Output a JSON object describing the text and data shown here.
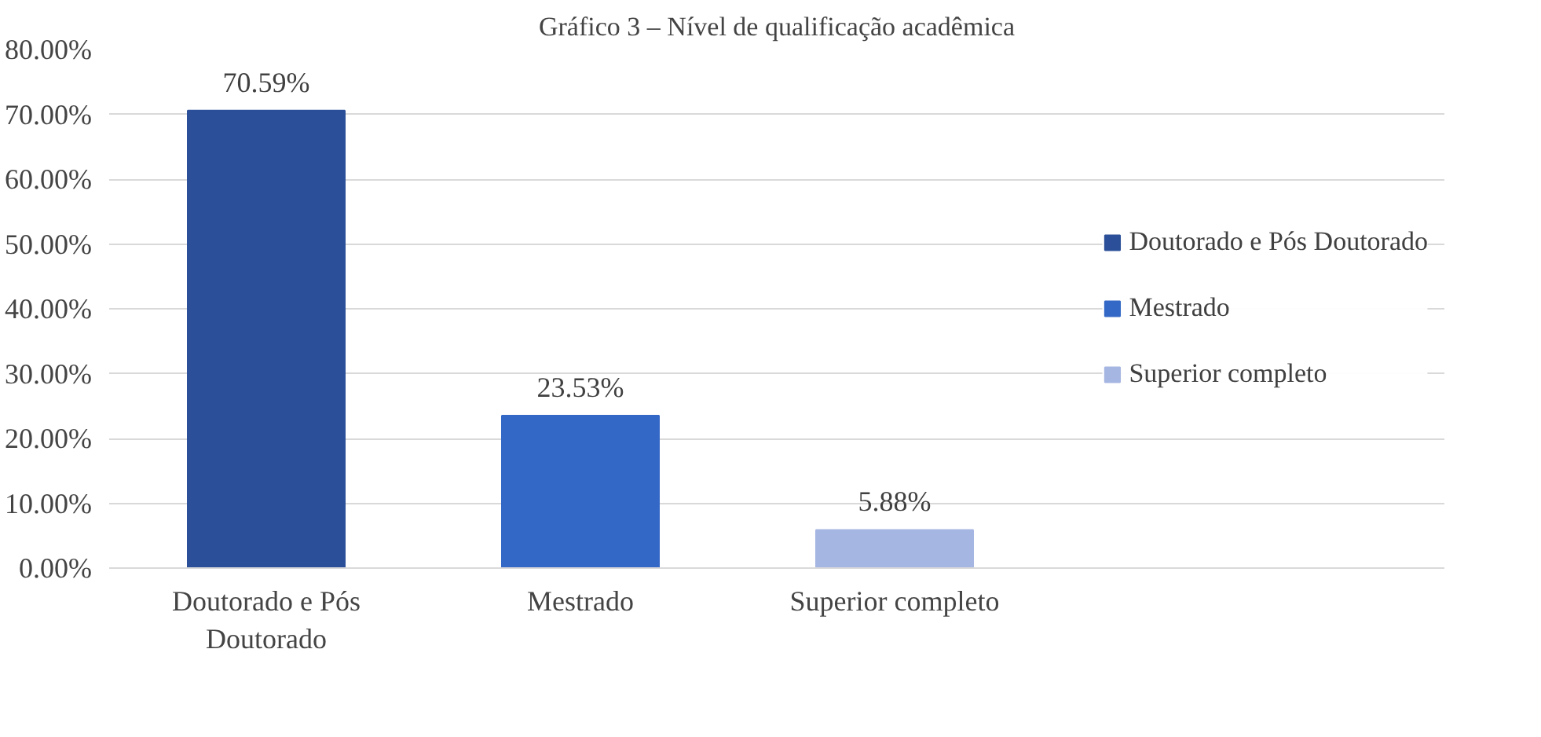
{
  "chart_data": {
    "type": "bar",
    "title": "Gráfico 3 – Nível de qualificação acadêmica",
    "categories": [
      "Doutorado e Pós Doutorado",
      "Mestrado",
      "Superior completo"
    ],
    "series": [
      {
        "name": "Doutorado e Pós Doutorado",
        "color": "#2b4f98",
        "values": [
          70.59,
          null,
          null
        ],
        "value_labels": [
          "70.59%",
          null,
          null
        ]
      },
      {
        "name": "Mestrado",
        "color": "#3468c6",
        "values": [
          null,
          23.53,
          null
        ],
        "value_labels": [
          null,
          "23.53%",
          null
        ]
      },
      {
        "name": "Superior completo",
        "color": "#a6b6e2",
        "values": [
          null,
          null,
          5.88
        ],
        "value_labels": [
          null,
          null,
          "5.88%"
        ]
      }
    ],
    "stacked": true,
    "ylim": [
      0,
      80
    ],
    "yticks": [
      {
        "value": 0,
        "label": "0.00%"
      },
      {
        "value": 10,
        "label": "10.00%"
      },
      {
        "value": 20,
        "label": "20.00%"
      },
      {
        "value": 30,
        "label": "30.00%"
      },
      {
        "value": 40,
        "label": "40.00%"
      },
      {
        "value": 50,
        "label": "50.00%"
      },
      {
        "value": 60,
        "label": "60.00%"
      },
      {
        "value": 70,
        "label": "70.00%"
      },
      {
        "value": 80,
        "label": "80.00%"
      }
    ],
    "grid": "y",
    "legend": "right"
  }
}
